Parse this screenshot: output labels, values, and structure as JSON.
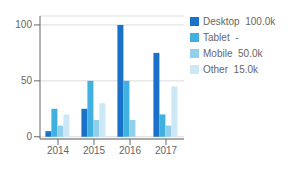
{
  "chart_data": {
    "type": "bar",
    "categories": [
      "2014",
      "2015",
      "2016",
      "2017"
    ],
    "series": [
      {
        "name": "Desktop  100.0k",
        "color": "#1a72c8",
        "values": [
          5,
          25,
          100,
          75
        ]
      },
      {
        "name": "Tablet  -",
        "color": "#40b0e0",
        "values": [
          25,
          50,
          50,
          20
        ]
      },
      {
        "name": "Mobile  50.0k",
        "color": "#90d0ee",
        "values": [
          10,
          15,
          15,
          10
        ]
      },
      {
        "name": "Other  15.0k",
        "color": "#cce8f6",
        "values": [
          20,
          30,
          0,
          45
        ]
      }
    ],
    "ylim": [
      -2,
      108
    ],
    "yticks": [
      0,
      50,
      100
    ],
    "grid": true,
    "legend": "right"
  }
}
